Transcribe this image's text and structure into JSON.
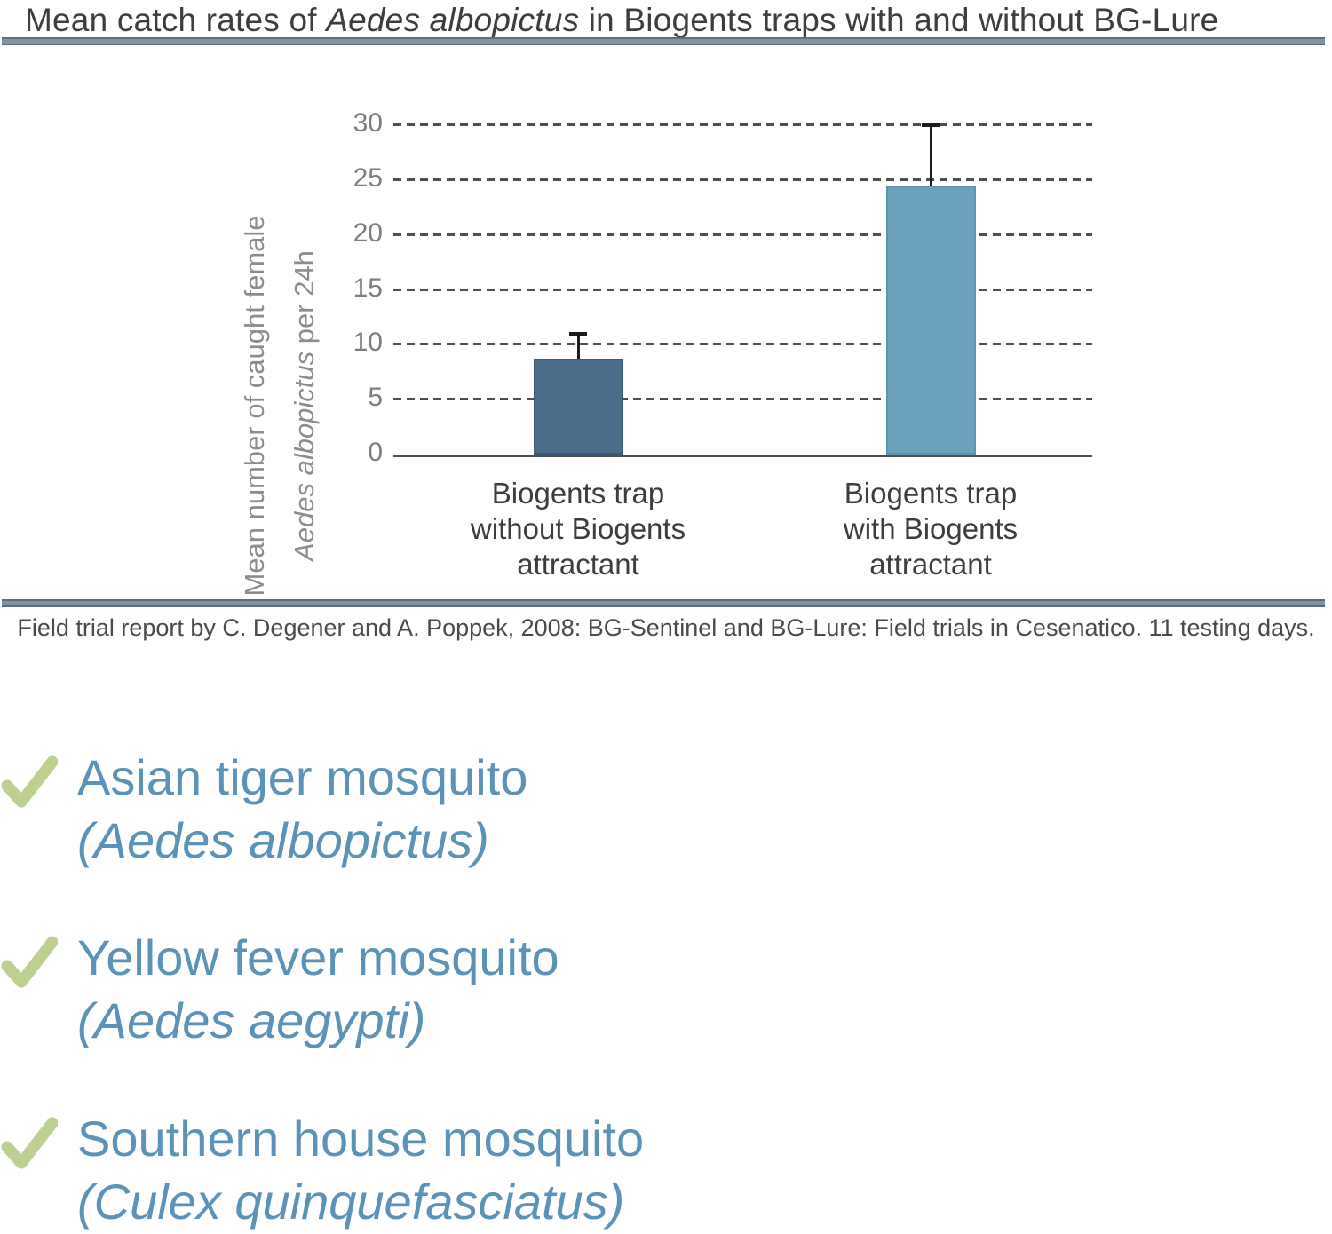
{
  "title": {
    "prefix": "Mean catch rates of ",
    "species": "Aedes albopictus",
    "suffix": " in Biogents traps with and without BG-Lure"
  },
  "chart_data": {
    "type": "bar",
    "title": "Mean catch rates of Aedes albopictus in Biogents traps with and without BG-Lure",
    "ylabel_line1": "Mean number of caught female",
    "ylabel_line2_italic": "Aedes albopictus",
    "ylabel_line2_rest": " per 24h",
    "categories": [
      [
        "Biogents trap",
        "without Biogents",
        "attractant"
      ],
      [
        "Biogents trap",
        "with Biogents",
        "attractant"
      ]
    ],
    "values": [
      8.7,
      24.5
    ],
    "error_upper": [
      2.5,
      5.7
    ],
    "yticks": [
      0,
      5,
      10,
      15,
      20,
      25,
      30
    ],
    "ylim": [
      0,
      30
    ],
    "grid": "horizontal-dashed",
    "legend": "none",
    "bar_colors": [
      "#4a6d8b",
      "#6aa2be"
    ],
    "bar_border_colors": [
      "#3d5a74",
      "#5d95b1"
    ],
    "error_bar_color": "#1c1c1c"
  },
  "caption": "Field trial report by C. Degener and A. Poppek, 2008: BG-Sentinel and BG-Lure: Field trials in Cesenatico. 11 testing days.",
  "checklist": [
    {
      "common": "Asian tiger mosquito",
      "latin": "(Aedes albopictus)"
    },
    {
      "common": "Yellow fever mosquito",
      "latin": "(Aedes aegypti)"
    },
    {
      "common": "Southern house mosquito",
      "latin": "(Culex quinquefasciatus)"
    }
  ],
  "colors": {
    "accent_blue_text": "#5a92b8",
    "check_green": "#bdd08f",
    "divider": "#8392a1",
    "divider_edge": "#5e6d7c",
    "bar_dark": "#4a6d8b",
    "bar_light": "#6aa2be",
    "text_dark": "#3d3d3d",
    "axis_gray": "#7d7d7d"
  }
}
